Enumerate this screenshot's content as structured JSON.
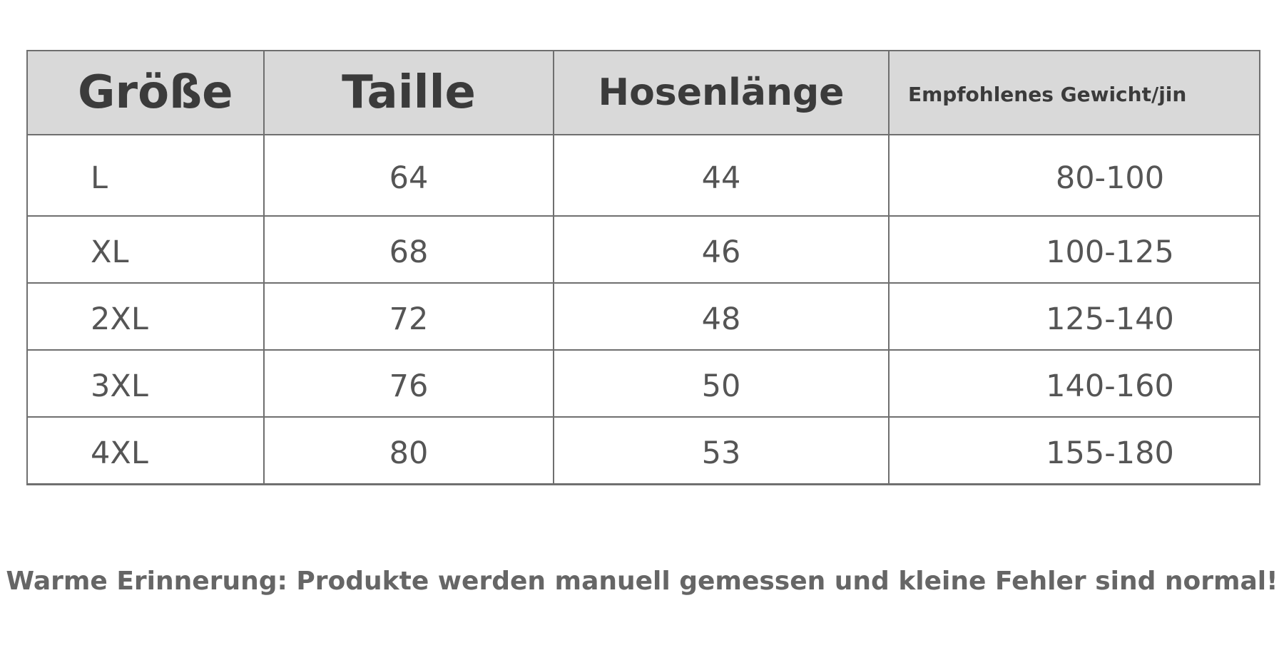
{
  "table": {
    "headers": [
      "Größe",
      "Taille",
      "Hosenlänge",
      "Empfohlenes Gewicht/jin"
    ],
    "rows": [
      [
        "L",
        "64",
        "44",
        "80-100"
      ],
      [
        "XL",
        "68",
        "46",
        "100-125"
      ],
      [
        "2XL",
        "72",
        "48",
        "125-140"
      ],
      [
        "3XL",
        "76",
        "50",
        "140-160"
      ],
      [
        "4XL",
        "80",
        "53",
        "155-180"
      ]
    ]
  },
  "note": "Warme Erinnerung: Produkte werden manuell gemessen und kleine Fehler sind normal!",
  "colors": {
    "header_bg": "#d9d9d9",
    "border": "#6f6f6f",
    "header_text": "#3b3b3b",
    "cell_text": "#555555"
  }
}
